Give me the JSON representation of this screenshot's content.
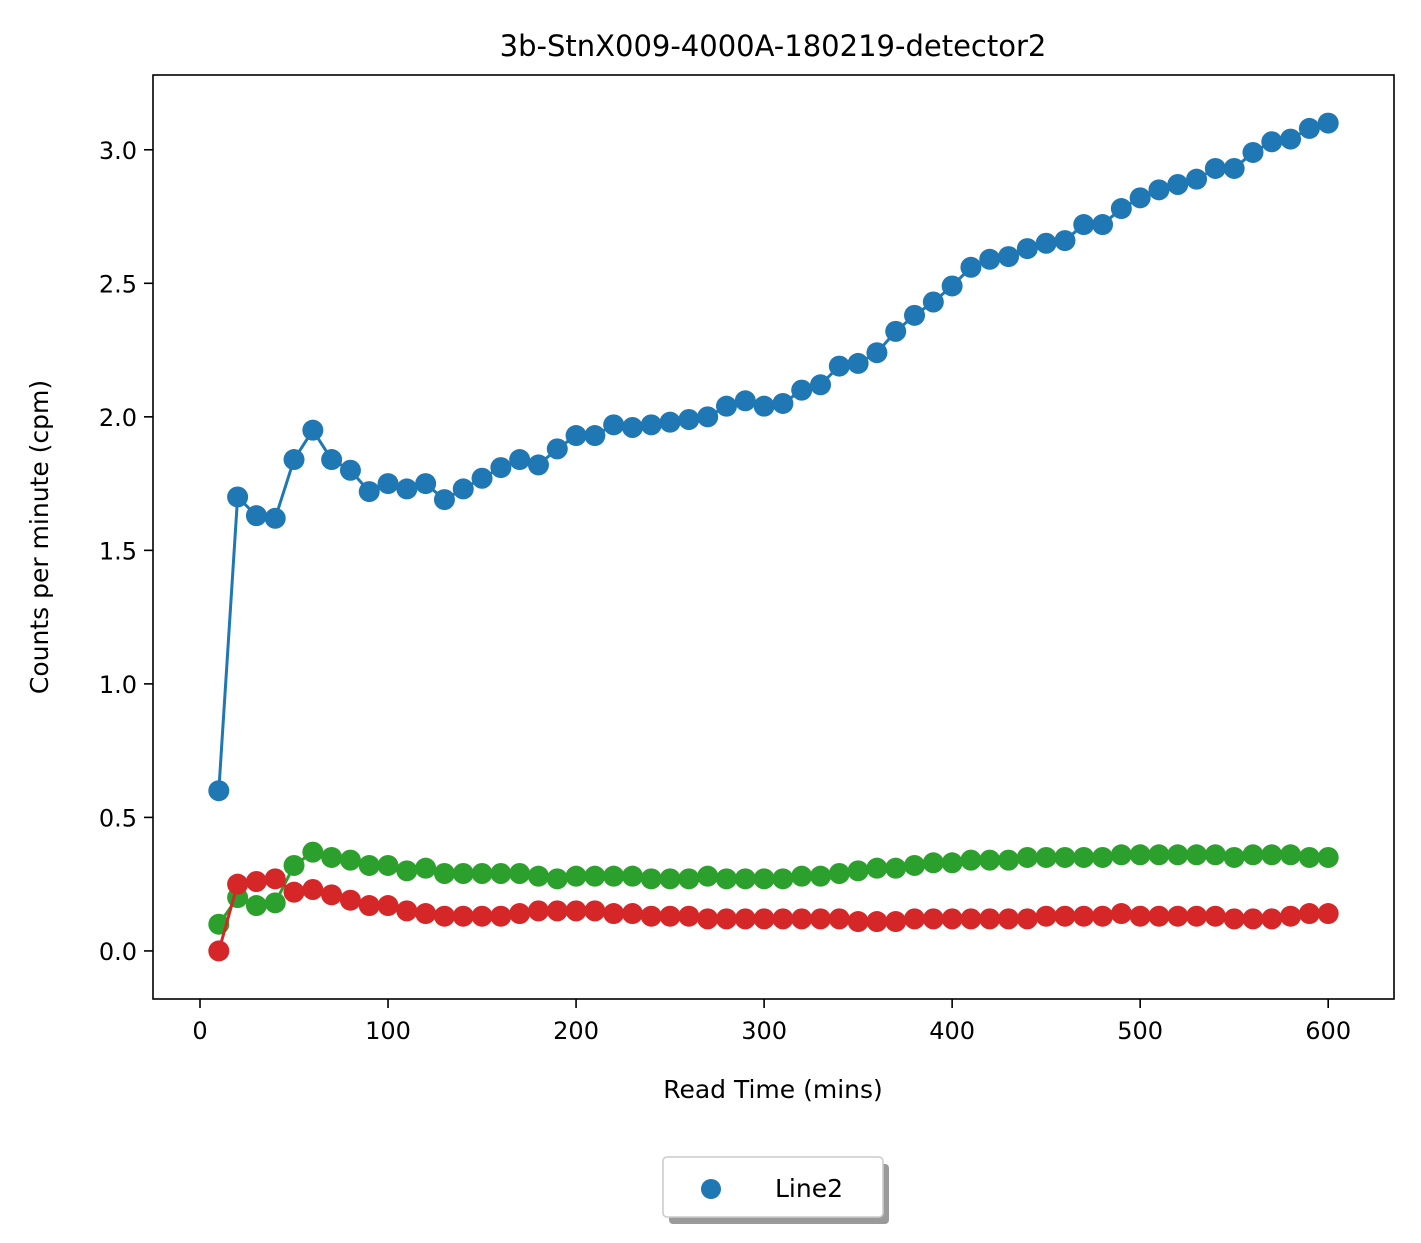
{
  "chart_data": {
    "type": "line",
    "title": "3b-StnX009-4000A-180219-detector2",
    "xlabel": "Read Time (mins)",
    "ylabel": "Counts per minute (cpm)",
    "xlim": [
      -25,
      635
    ],
    "ylim": [
      -0.18,
      3.28
    ],
    "xticks": [
      0,
      100,
      200,
      300,
      400,
      500,
      600
    ],
    "yticks": [
      0.0,
      0.5,
      1.0,
      1.5,
      2.0,
      2.5,
      3.0
    ],
    "xtick_labels": [
      "0",
      "100",
      "200",
      "300",
      "400",
      "500",
      "600"
    ],
    "ytick_labels": [
      "0.0",
      "0.5",
      "1.0",
      "1.5",
      "2.0",
      "2.5",
      "3.0"
    ],
    "legend_placement": "bottom-center, below axes",
    "x": [
      10,
      20,
      30,
      40,
      50,
      60,
      70,
      80,
      90,
      100,
      110,
      120,
      130,
      140,
      150,
      160,
      170,
      180,
      190,
      200,
      210,
      220,
      230,
      240,
      250,
      260,
      270,
      280,
      290,
      300,
      310,
      320,
      330,
      340,
      350,
      360,
      370,
      380,
      390,
      400,
      410,
      420,
      430,
      440,
      450,
      460,
      470,
      480,
      490,
      500,
      510,
      520,
      530,
      540,
      550,
      560,
      570,
      580,
      590,
      600
    ],
    "series": [
      {
        "name": "Line2",
        "color": "#1f77b4",
        "values": [
          0.6,
          1.7,
          1.63,
          1.62,
          1.84,
          1.95,
          1.84,
          1.8,
          1.72,
          1.75,
          1.73,
          1.75,
          1.69,
          1.73,
          1.77,
          1.81,
          1.84,
          1.82,
          1.88,
          1.93,
          1.93,
          1.97,
          1.96,
          1.97,
          1.98,
          1.99,
          2.0,
          2.04,
          2.06,
          2.04,
          2.05,
          2.1,
          2.12,
          2.19,
          2.2,
          2.24,
          2.32,
          2.38,
          2.43,
          2.49,
          2.56,
          2.59,
          2.6,
          2.63,
          2.65,
          2.66,
          2.72,
          2.72,
          2.78,
          2.82,
          2.85,
          2.87,
          2.89,
          2.93,
          2.93,
          2.99,
          3.03,
          3.04,
          3.08,
          3.1
        ]
      },
      {
        "color": "#2ca02c",
        "values": [
          0.1,
          0.2,
          0.17,
          0.18,
          0.32,
          0.37,
          0.35,
          0.34,
          0.32,
          0.32,
          0.3,
          0.31,
          0.29,
          0.29,
          0.29,
          0.29,
          0.29,
          0.28,
          0.27,
          0.28,
          0.28,
          0.28,
          0.28,
          0.27,
          0.27,
          0.27,
          0.28,
          0.27,
          0.27,
          0.27,
          0.27,
          0.28,
          0.28,
          0.29,
          0.3,
          0.31,
          0.31,
          0.32,
          0.33,
          0.33,
          0.34,
          0.34,
          0.34,
          0.35,
          0.35,
          0.35,
          0.35,
          0.35,
          0.36,
          0.36,
          0.36,
          0.36,
          0.36,
          0.36,
          0.35,
          0.36,
          0.36,
          0.36,
          0.35,
          0.35
        ]
      },
      {
        "color": "#d62728",
        "values": [
          0.0,
          0.25,
          0.26,
          0.27,
          0.22,
          0.23,
          0.21,
          0.19,
          0.17,
          0.17,
          0.15,
          0.14,
          0.13,
          0.13,
          0.13,
          0.13,
          0.14,
          0.15,
          0.15,
          0.15,
          0.15,
          0.14,
          0.14,
          0.13,
          0.13,
          0.13,
          0.12,
          0.12,
          0.12,
          0.12,
          0.12,
          0.12,
          0.12,
          0.12,
          0.11,
          0.11,
          0.11,
          0.12,
          0.12,
          0.12,
          0.12,
          0.12,
          0.12,
          0.12,
          0.13,
          0.13,
          0.13,
          0.13,
          0.14,
          0.13,
          0.13,
          0.13,
          0.13,
          0.13,
          0.12,
          0.12,
          0.12,
          0.13,
          0.14,
          0.14
        ]
      }
    ]
  }
}
